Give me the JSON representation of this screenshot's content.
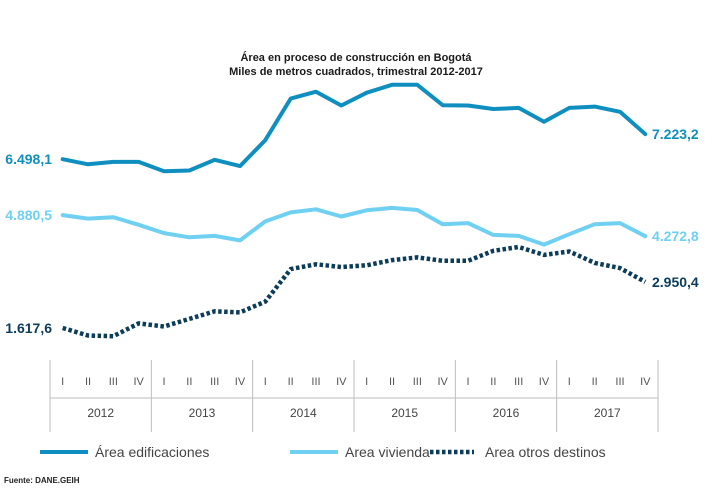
{
  "chart_data": {
    "type": "line",
    "title": "Área en proceso de construcción en Bogotá",
    "subtitle": "Miles de metros cuadrados, trimestral 2012-2017",
    "years": [
      "2012",
      "2013",
      "2014",
      "2015",
      "2016",
      "2017"
    ],
    "quarters": [
      "I",
      "II",
      "III",
      "IV"
    ],
    "ylim": [
      0,
      9000
    ],
    "series": [
      {
        "name": "Área edificaciones",
        "color": "#0f8fbf",
        "style": "solid",
        "values": [
          6498.1,
          6350,
          6420,
          6420,
          6150,
          6170,
          6480,
          6300,
          7050,
          8250,
          8450,
          8050,
          8420,
          8650,
          8650,
          8060,
          8050,
          7950,
          7980,
          7580,
          7980,
          8020,
          7870,
          7223.2
        ],
        "start_label": "6.498,1",
        "end_label": "7.223,2"
      },
      {
        "name": "Area vivienda",
        "color": "#6fd0f2",
        "style": "solid",
        "values": [
          4880.5,
          4780,
          4820,
          4600,
          4360,
          4240,
          4280,
          4150,
          4700,
          4960,
          5050,
          4840,
          5020,
          5090,
          5030,
          4620,
          4650,
          4310,
          4280,
          4030,
          4330,
          4620,
          4650,
          4272.8
        ],
        "start_label": "4.880,5",
        "end_label": "4.272,8"
      },
      {
        "name": "Area otros destinos",
        "color": "#0b3c5a",
        "style": "dotted",
        "values": [
          1617.6,
          1400,
          1380,
          1750,
          1660,
          1880,
          2100,
          2070,
          2380,
          3320,
          3460,
          3380,
          3430,
          3580,
          3660,
          3560,
          3560,
          3850,
          3960,
          3730,
          3830,
          3500,
          3350,
          2950.4
        ],
        "start_label": "1.617,6",
        "end_label": "2.950,4"
      }
    ],
    "source": "Fuente: DANE.GEIH"
  }
}
